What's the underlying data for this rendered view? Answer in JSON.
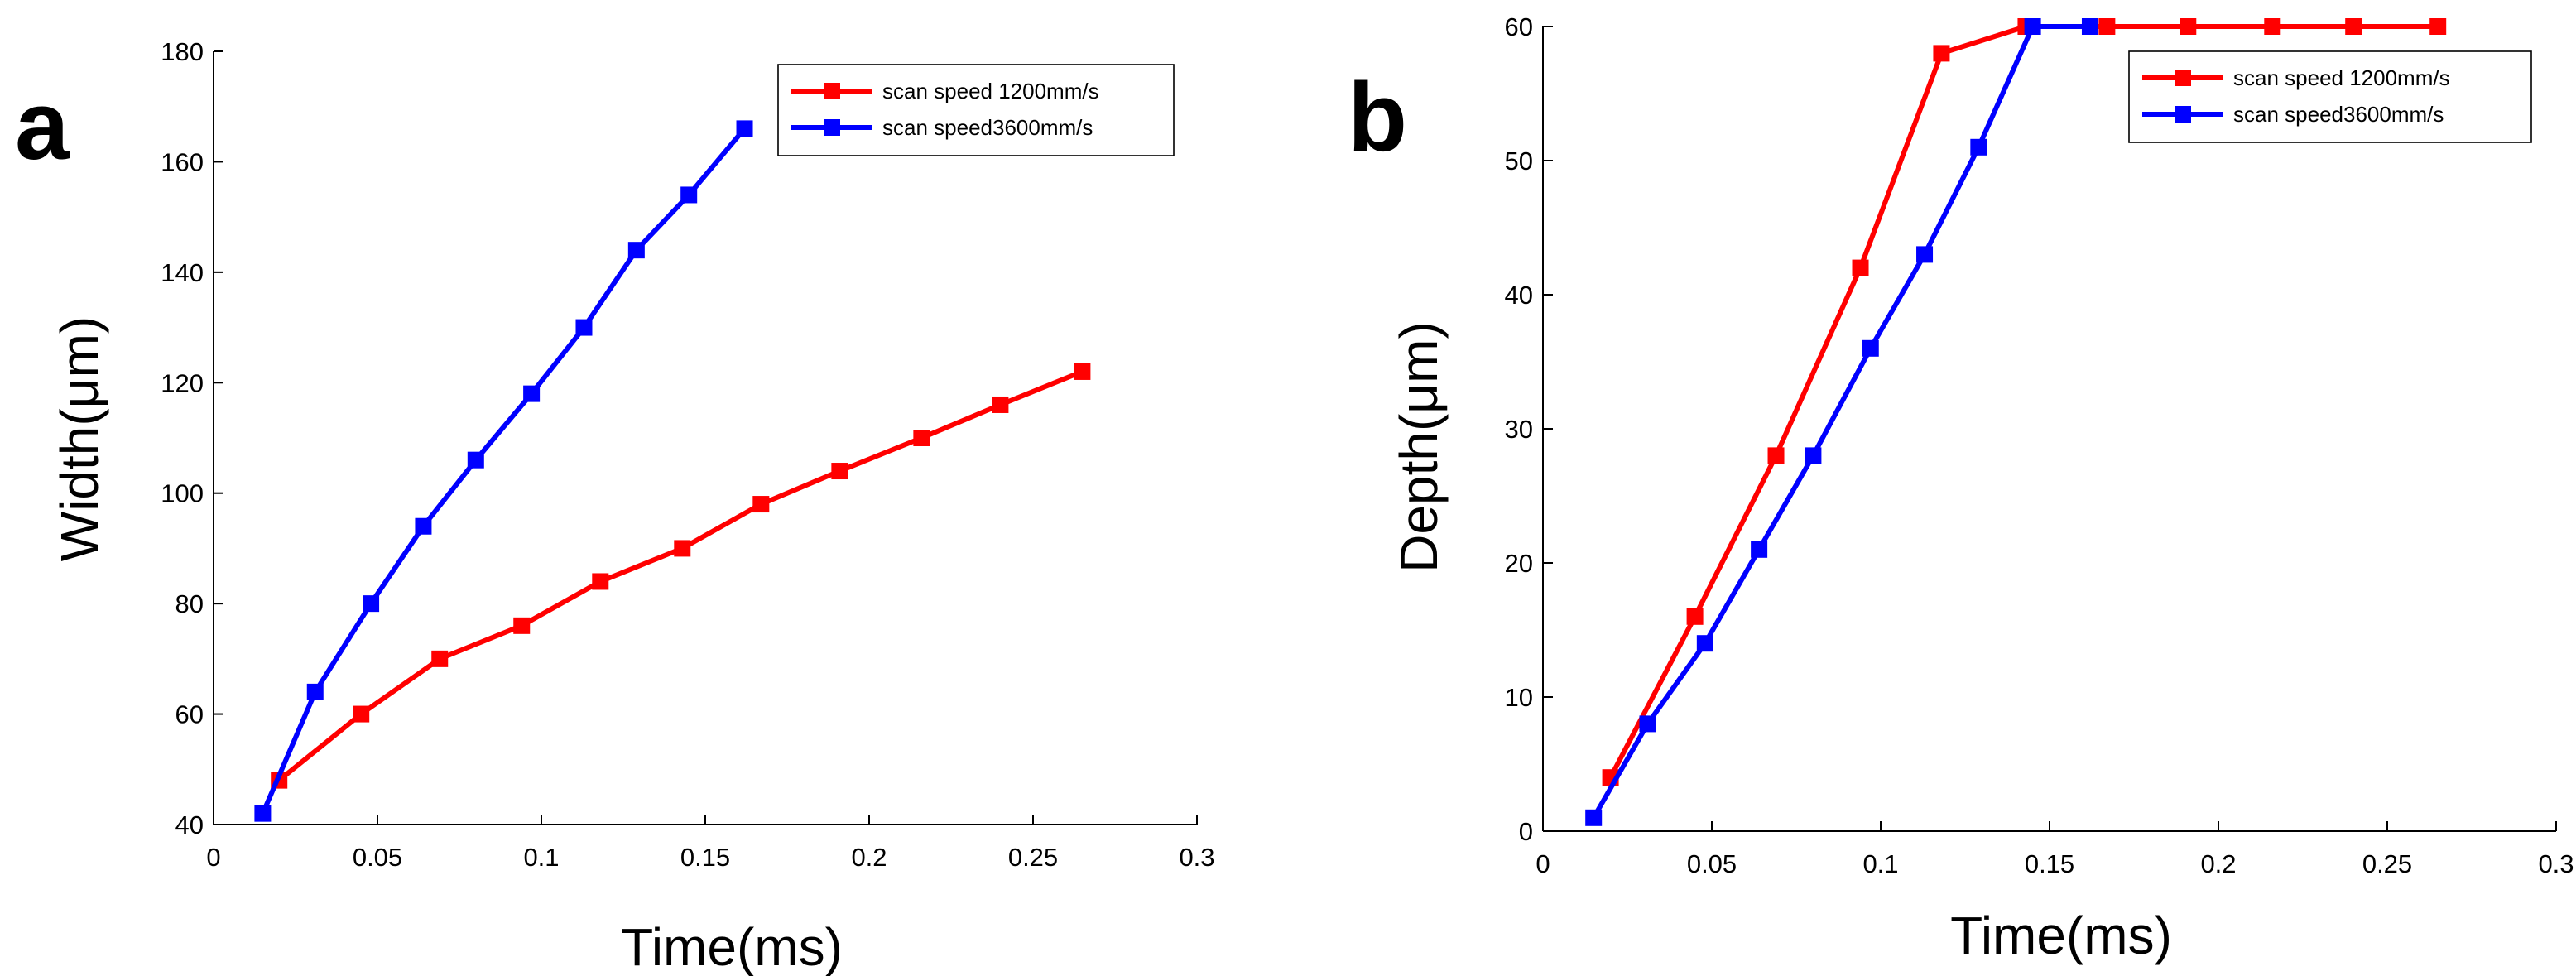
{
  "chart_data": [
    {
      "type": "line",
      "panel_label": "a",
      "title": "",
      "xlabel": "Time(ms)",
      "ylabel": "Width(μm)",
      "xlim": [
        0,
        0.3
      ],
      "ylim": [
        40,
        180
      ],
      "xticks": [
        0,
        0.05,
        0.1,
        0.15,
        0.2,
        0.25,
        0.3
      ],
      "xtick_labels": [
        "0",
        "0.05",
        "0.1",
        "0.15",
        "0.2",
        "0.25",
        "0.3"
      ],
      "yticks": [
        40,
        60,
        80,
        100,
        120,
        140,
        160,
        180
      ],
      "ytick_labels": [
        "40",
        "60",
        "80",
        "100",
        "120",
        "140",
        "160",
        "180"
      ],
      "grid": false,
      "legend_position": "top-right",
      "series": [
        {
          "name": "scan speed 1200mm/s",
          "color": "#ff0000",
          "marker": "square",
          "x": [
            0.02,
            0.045,
            0.069,
            0.094,
            0.118,
            0.143,
            0.167,
            0.191,
            0.216,
            0.24,
            0.265
          ],
          "y": [
            48,
            60,
            70,
            76,
            84,
            90,
            98,
            104,
            110,
            116,
            122
          ]
        },
        {
          "name": "scan speed3600mm/s",
          "color": "#0000ff",
          "marker": "square",
          "x": [
            0.015,
            0.031,
            0.048,
            0.064,
            0.08,
            0.097,
            0.113,
            0.129,
            0.145,
            0.162
          ],
          "y": [
            42,
            64,
            80,
            94,
            106,
            118,
            130,
            144,
            154,
            166
          ]
        }
      ]
    },
    {
      "type": "line",
      "panel_label": "b",
      "title": "",
      "xlabel": "Time(ms)",
      "ylabel": "Depth(μm)",
      "xlim": [
        0,
        0.3
      ],
      "ylim": [
        0,
        60
      ],
      "xticks": [
        0,
        0.05,
        0.1,
        0.15,
        0.2,
        0.25,
        0.3
      ],
      "xtick_labels": [
        "0",
        "0.05",
        "0.1",
        "0.15",
        "0.2",
        "0.25",
        "0.3"
      ],
      "yticks": [
        0,
        10,
        20,
        30,
        40,
        50,
        60
      ],
      "ytick_labels": [
        "0",
        "10",
        "20",
        "30",
        "40",
        "50",
        "60"
      ],
      "grid": false,
      "legend_position": "top-right",
      "series": [
        {
          "name": "scan speed 1200mm/s",
          "color": "#ff0000",
          "marker": "square",
          "x": [
            0.02,
            0.045,
            0.069,
            0.094,
            0.118,
            0.143,
            0.167,
            0.191,
            0.216,
            0.24,
            0.265
          ],
          "y": [
            4,
            16,
            28,
            42,
            58,
            60,
            60,
            60,
            60,
            60,
            60
          ]
        },
        {
          "name": "scan speed3600mm/s",
          "color": "#0000ff",
          "marker": "square",
          "x": [
            0.015,
            0.031,
            0.048,
            0.064,
            0.08,
            0.097,
            0.113,
            0.129,
            0.145,
            0.162
          ],
          "y": [
            1,
            8,
            14,
            21,
            28,
            36,
            43,
            51,
            60,
            60
          ]
        }
      ]
    }
  ]
}
